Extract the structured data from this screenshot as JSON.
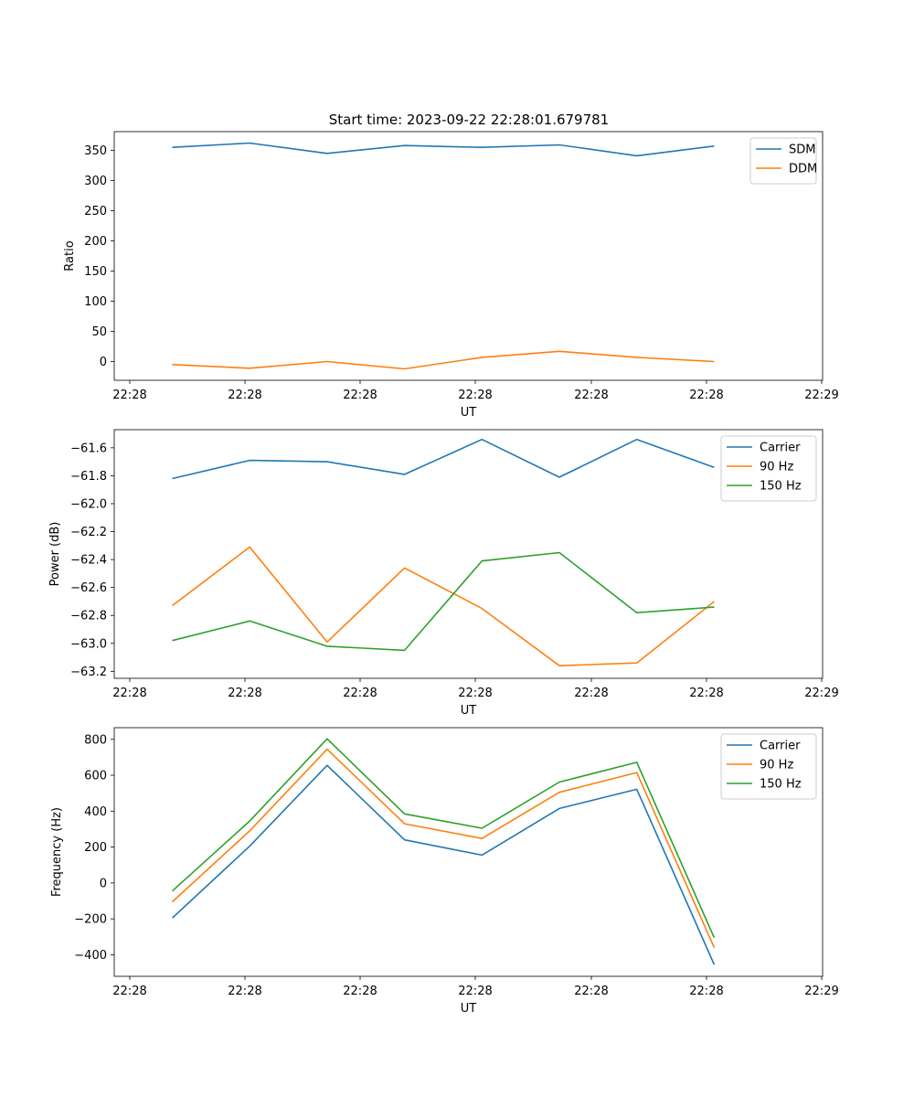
{
  "figure_title": "Start time: 2023-09-22 22:28:01.679781",
  "colors": {
    "blue": "#1f77b4",
    "orange": "#ff7f0e",
    "green": "#2ca02c"
  },
  "chart_data": [
    {
      "type": "line",
      "title": "Start time: 2023-09-22 22:28:01.679781",
      "xlabel": "UT",
      "ylabel": "Ratio",
      "x_tick_labels": [
        "22:28",
        "22:28",
        "22:28",
        "22:28",
        "22:28",
        "22:28",
        "22:28"
      ],
      "x_tick_labels_end": "22:29",
      "x": [
        1,
        2,
        3,
        4,
        5,
        6,
        7,
        8
      ],
      "xlim": [
        0.25,
        9.4
      ],
      "ylim": [
        -31,
        381
      ],
      "yticks": [
        0,
        50,
        100,
        150,
        200,
        250,
        300,
        350
      ],
      "ytick_labels": [
        "0",
        "50",
        "100",
        "150",
        "200",
        "250",
        "300",
        "350"
      ],
      "legend": "top-right",
      "series": [
        {
          "name": "SDM",
          "color": "#1f77b4",
          "values": [
            355,
            362,
            345,
            358,
            355,
            359,
            341,
            357
          ]
        },
        {
          "name": "DDM",
          "color": "#ff7f0e",
          "values": [
            -5,
            -11,
            0,
            -12,
            7,
            17,
            7,
            0
          ]
        }
      ]
    },
    {
      "type": "line",
      "xlabel": "UT",
      "ylabel": "Power (dB)",
      "x_tick_labels": [
        "22:28",
        "22:28",
        "22:28",
        "22:28",
        "22:28",
        "22:28",
        "22:28"
      ],
      "x_tick_labels_end": "22:29",
      "x": [
        1,
        2,
        3,
        4,
        5,
        6,
        7,
        8
      ],
      "xlim": [
        0.25,
        9.4
      ],
      "ylim": [
        -63.25,
        -61.47
      ],
      "yticks": [
        -63.2,
        -63.0,
        -62.8,
        -62.6,
        -62.4,
        -62.2,
        -62.0,
        -61.8,
        -61.6
      ],
      "ytick_labels": [
        "−63.2",
        "−63.0",
        "−62.8",
        "−62.6",
        "−62.4",
        "−62.2",
        "−62.0",
        "−61.8",
        "−61.6"
      ],
      "legend": "top-right",
      "series": [
        {
          "name": "Carrier",
          "color": "#1f77b4",
          "values": [
            -61.82,
            -61.69,
            -61.7,
            -61.79,
            -61.54,
            -61.81,
            -61.54,
            -61.74
          ]
        },
        {
          "name": "90 Hz",
          "color": "#ff7f0e",
          "values": [
            -62.73,
            -62.31,
            -62.99,
            -62.46,
            -62.75,
            -63.16,
            -63.14,
            -62.7
          ]
        },
        {
          "name": "150 Hz",
          "color": "#2ca02c",
          "values": [
            -62.98,
            -62.84,
            -63.02,
            -63.05,
            -62.41,
            -62.35,
            -62.78,
            -62.74
          ]
        }
      ]
    },
    {
      "type": "line",
      "xlabel": "UT",
      "ylabel": "Frequency (Hz)",
      "x_tick_labels": [
        "22:28",
        "22:28",
        "22:28",
        "22:28",
        "22:28",
        "22:28",
        "22:28"
      ],
      "x_tick_labels_end": "22:29",
      "x": [
        1,
        2,
        3,
        4,
        5,
        6,
        7,
        8
      ],
      "xlim": [
        0.25,
        9.4
      ],
      "ylim": [
        -520,
        865
      ],
      "yticks": [
        -400,
        -200,
        0,
        200,
        400,
        600,
        800
      ],
      "ytick_labels": [
        "−400",
        "−200",
        "0",
        "200",
        "400",
        "600",
        "800"
      ],
      "legend": "top-right",
      "series": [
        {
          "name": "Carrier",
          "color": "#1f77b4",
          "values": [
            -195,
            205,
            655,
            240,
            155,
            415,
            522,
            -455
          ]
        },
        {
          "name": "90 Hz",
          "color": "#ff7f0e",
          "values": [
            -105,
            290,
            745,
            330,
            248,
            505,
            615,
            -360
          ]
        },
        {
          "name": "150 Hz",
          "color": "#2ca02c",
          "values": [
            -45,
            345,
            803,
            385,
            305,
            562,
            672,
            -305
          ]
        }
      ]
    }
  ]
}
